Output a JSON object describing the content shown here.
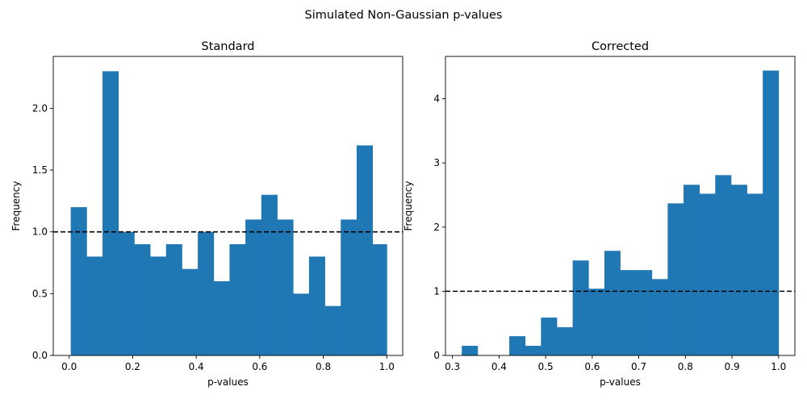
{
  "figure": {
    "suptitle": "Simulated Non-Gaussian p-values"
  },
  "chart_data": [
    {
      "type": "bar",
      "title": "Standard",
      "xlabel": "p-values",
      "ylabel": "Frequency",
      "xlim": [
        -0.05,
        1.05
      ],
      "ylim": [
        0,
        2.42
      ],
      "xticks": [
        0.0,
        0.2,
        0.4,
        0.6,
        0.8,
        1.0
      ],
      "xtick_labels": [
        "0.0",
        "0.2",
        "0.4",
        "0.6",
        "0.8",
        "1.0"
      ],
      "yticks": [
        0.0,
        0.5,
        1.0,
        1.5,
        2.0
      ],
      "ytick_labels": [
        "0.0",
        "0.5",
        "1.0",
        "1.5",
        "2.0"
      ],
      "bin_edges": [
        0.005,
        0.055,
        0.105,
        0.155,
        0.205,
        0.255,
        0.305,
        0.355,
        0.405,
        0.455,
        0.505,
        0.555,
        0.605,
        0.655,
        0.705,
        0.755,
        0.805,
        0.855,
        0.905,
        0.955,
        1.0
      ],
      "values": [
        1.2,
        0.8,
        2.3,
        1.0,
        0.9,
        0.8,
        0.9,
        0.7,
        1.0,
        0.6,
        0.9,
        1.1,
        1.3,
        1.1,
        0.5,
        0.8,
        0.4,
        1.1,
        1.7,
        0.9
      ],
      "reference_line": 1.0,
      "color": "#1f77b4",
      "grid": false
    },
    {
      "type": "bar",
      "title": "Corrected",
      "xlabel": "p-values",
      "ylabel": "Frequency",
      "xlim": [
        0.285,
        1.035
      ],
      "ylim": [
        0,
        4.66
      ],
      "xticks": [
        0.3,
        0.4,
        0.5,
        0.6,
        0.7,
        0.8,
        0.9,
        1.0
      ],
      "xtick_labels": [
        "0.3",
        "0.4",
        "0.5",
        "0.6",
        "0.7",
        "0.8",
        "0.9",
        "1.0"
      ],
      "yticks": [
        0,
        1,
        2,
        3,
        4
      ],
      "ytick_labels": [
        "0",
        "1",
        "2",
        "3",
        "4"
      ],
      "bin_edges": [
        0.32,
        0.354,
        0.388,
        0.422,
        0.456,
        0.49,
        0.524,
        0.558,
        0.592,
        0.626,
        0.66,
        0.694,
        0.728,
        0.762,
        0.796,
        0.83,
        0.864,
        0.898,
        0.932,
        0.966,
        1.0
      ],
      "values": [
        0.15,
        0.0,
        0.0,
        0.3,
        0.15,
        0.59,
        0.44,
        1.48,
        1.04,
        1.63,
        1.33,
        1.33,
        1.19,
        2.37,
        2.66,
        2.52,
        2.81,
        2.66,
        2.52,
        4.44
      ],
      "reference_line": 1.0,
      "color": "#1f77b4",
      "grid": false
    }
  ]
}
